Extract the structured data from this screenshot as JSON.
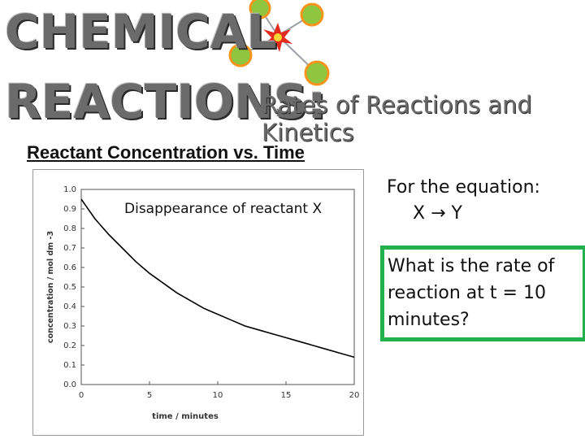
{
  "banner": {
    "word1": "CHEMICAL",
    "word2": "REACTIONS:",
    "subtitle": "Rates of Reactions and Kinetics",
    "molecule_colors": {
      "center": "#e32b1e",
      "ball": "#8ec63f",
      "ball_edge": "#f7941d"
    }
  },
  "section": {
    "heading": "Reactant Concentration vs. Time"
  },
  "equation": {
    "label": "For the equation:",
    "formula": "X → Y"
  },
  "question": {
    "text": "What is the rate of reaction at t = 10 minutes?"
  },
  "chart_data": {
    "type": "line",
    "title": "Disappearance of reactant X",
    "xlabel": "time / minutes",
    "ylabel": "concentration / mol dm -3",
    "xlim": [
      0,
      20
    ],
    "ylim": [
      0,
      1.0
    ],
    "x_ticks": [
      "0",
      "5",
      "10",
      "15",
      "20"
    ],
    "y_ticks": [
      "0.0",
      "0.1",
      "0.2",
      "0.3",
      "0.4",
      "0.5",
      "0.6",
      "0.7",
      "0.8",
      "0.9",
      "1.0"
    ],
    "grid": false,
    "series": [
      {
        "x": [
          0,
          1,
          2,
          3,
          4,
          5,
          6,
          7,
          8,
          9,
          10,
          11,
          12,
          13,
          14,
          15,
          16,
          17,
          18,
          19,
          20
        ],
        "y": [
          0.95,
          0.85,
          0.77,
          0.7,
          0.63,
          0.57,
          0.52,
          0.47,
          0.43,
          0.39,
          0.36,
          0.33,
          0.3,
          0.28,
          0.26,
          0.24,
          0.22,
          0.2,
          0.18,
          0.16,
          0.14
        ]
      }
    ],
    "line_color": "#000000"
  }
}
